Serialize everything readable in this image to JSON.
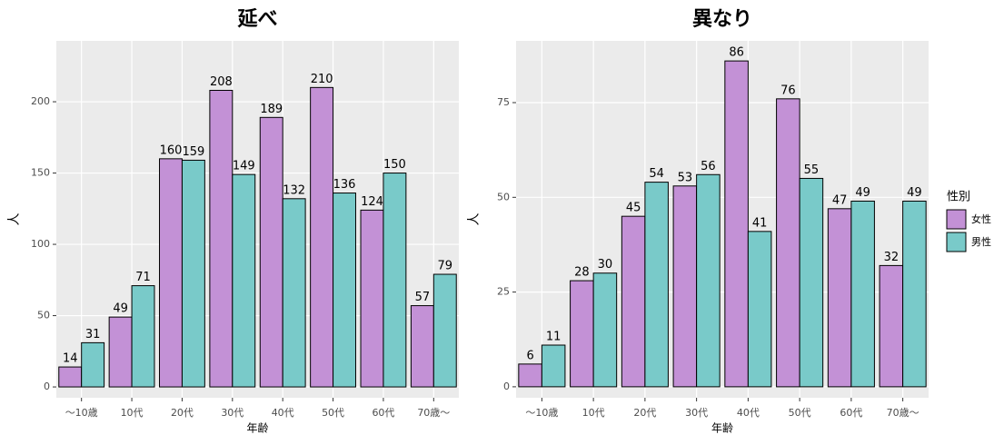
{
  "chart_data": [
    {
      "type": "bar",
      "title": "延べ",
      "x_label": "年齢",
      "y_label": "人",
      "categories": [
        "～10歳",
        "10代",
        "20代",
        "30代",
        "40代",
        "50代",
        "60代",
        "70歳～"
      ],
      "series": [
        {
          "color": "#c391d6",
          "values": [
            14,
            49,
            160,
            208,
            189,
            210,
            124,
            57
          ]
        },
        {
          "color": "#79cac9",
          "values": [
            31,
            71,
            159,
            149,
            132,
            136,
            150,
            79
          ]
        }
      ],
      "ylim": [
        -7.6,
        242.7
      ],
      "yticks": [
        0,
        50,
        100,
        150,
        200
      ],
      "grid": true
    },
    {
      "type": "bar",
      "title": "異なり",
      "x_label": "年齢",
      "y_label": "人",
      "categories": [
        "～10歳",
        "10代",
        "20代",
        "30代",
        "40代",
        "50代",
        "60代",
        "70歳～"
      ],
      "legend_title": "性別",
      "series": [
        {
          "name": "女性",
          "color": "#c391d6",
          "values": [
            6,
            28,
            45,
            53,
            86,
            76,
            47,
            32
          ]
        },
        {
          "name": "男性",
          "color": "#79cac9",
          "values": [
            11,
            30,
            54,
            56,
            41,
            55,
            49,
            49
          ]
        }
      ],
      "ylim": [
        -2.9,
        91.3
      ],
      "yticks": [
        0,
        25,
        50,
        75
      ],
      "grid": true
    }
  ]
}
